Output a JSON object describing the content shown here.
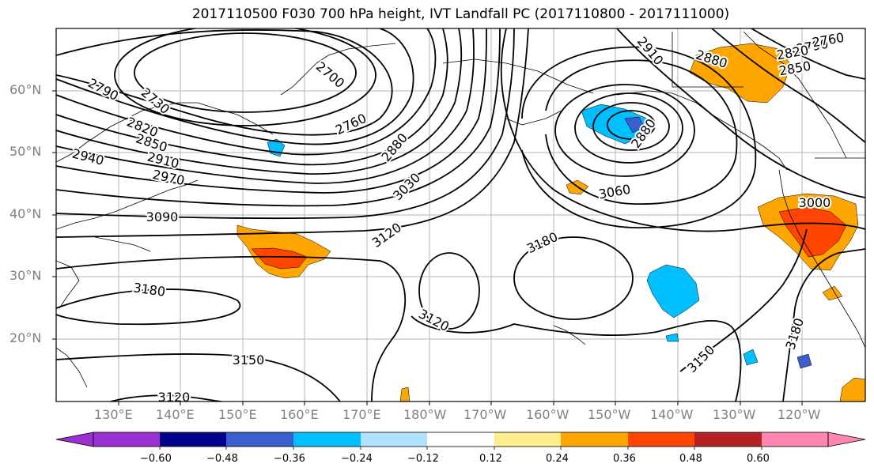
{
  "title": "2017110500 F030 700 hPa height, IVT Landfall PC (2017110800 - 2017111000)",
  "lat_labels": [
    "60°N",
    "50°N",
    "40°N",
    "30°N",
    "20°N"
  ],
  "lon_labels": [
    "130°E",
    "140°E",
    "150°E",
    "160°E",
    "170°E",
    "180°W",
    "170°W",
    "160°W",
    "150°W",
    "140°W",
    "130°W",
    "120°W"
  ],
  "colorbar": {
    "tick_labels": [
      "−0.60",
      "−0.48",
      "−0.36",
      "−0.24",
      "−0.12",
      "0.12",
      "0.24",
      "0.36",
      "0.48",
      "0.60"
    ],
    "colors": [
      "#9b30d0",
      "#00008b",
      "#3a5fcd",
      "#00bfff",
      "#b0e2ff",
      "#ffffff",
      "#ffec8b",
      "#ffa500",
      "#ff4500",
      "#b22222",
      "#ff86b0"
    ]
  },
  "contour_labels": [
    "2790",
    "2730",
    "2820",
    "2850",
    "2940",
    "2910",
    "2970",
    "3090",
    "3180",
    "2700",
    "2760",
    "2880",
    "3030",
    "3120",
    "3060",
    "3180",
    "3120",
    "3150",
    "3150",
    "3180",
    "3120",
    "3000",
    "2910",
    "2880",
    "2790",
    "2820",
    "2850",
    "2760",
    "2880"
  ]
}
